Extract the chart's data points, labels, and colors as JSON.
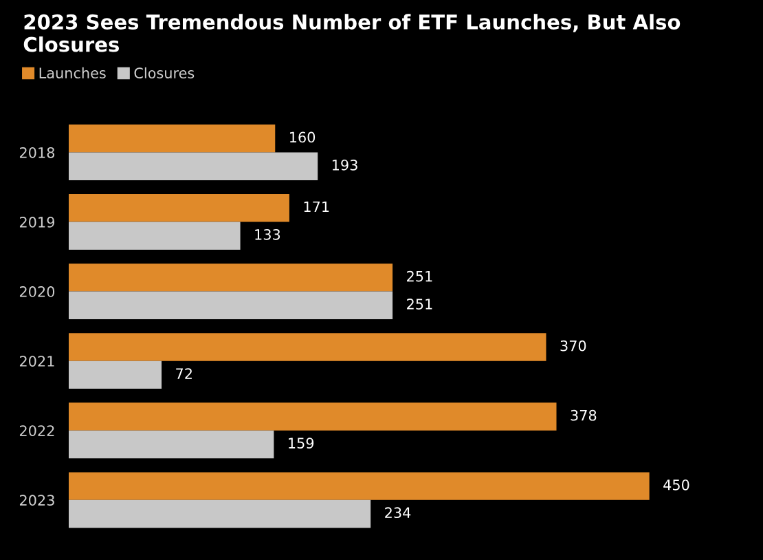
{
  "chart_data": {
    "type": "bar",
    "orientation": "horizontal",
    "title": "2023 Sees Tremendous Number of ETF Launches, But Also Closures",
    "categories": [
      "2018",
      "2019",
      "2020",
      "2021",
      "2022",
      "2023"
    ],
    "series": [
      {
        "name": "Launches",
        "color": "#e08a2a",
        "values": [
          160,
          171,
          251,
          370,
          378,
          450
        ]
      },
      {
        "name": "Closures",
        "color": "#c8c8c8",
        "values": [
          193,
          133,
          251,
          72,
          159,
          234
        ]
      }
    ],
    "data_labels": true,
    "legend": "top left",
    "grid": false,
    "tick_labels": "y"
  }
}
